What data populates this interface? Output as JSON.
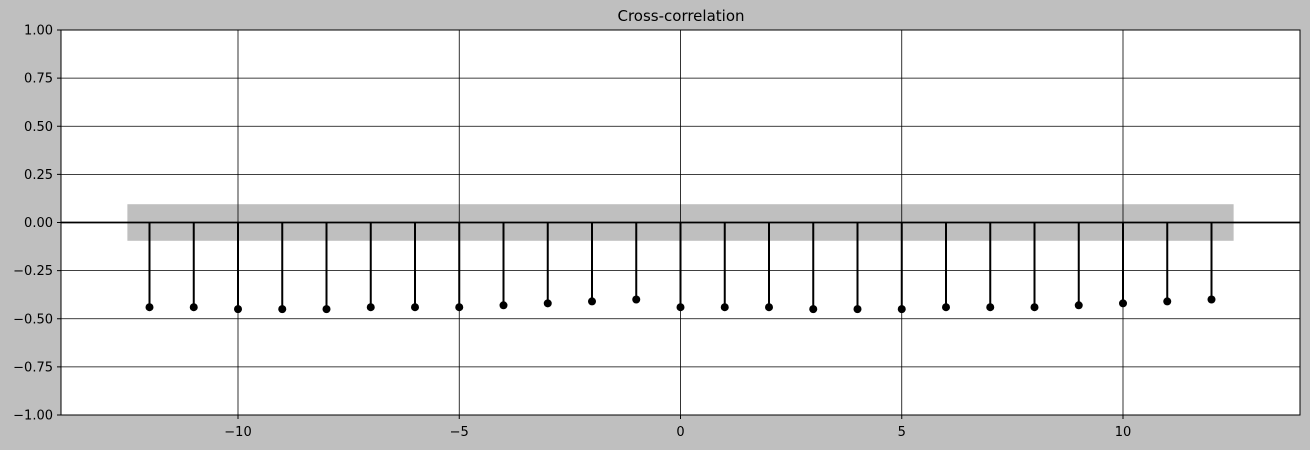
{
  "chart_data": {
    "type": "stem",
    "title": "Cross-correlation",
    "xlabel": "",
    "ylabel": "",
    "xlim": [
      -14,
      14
    ],
    "ylim": [
      -1.0,
      1.0
    ],
    "x_ticks": [
      -10,
      -5,
      0,
      5,
      10
    ],
    "x_tick_labels": [
      "−10",
      "−5",
      "0",
      "5",
      "10"
    ],
    "y_ticks": [
      1.0,
      0.75,
      0.5,
      0.25,
      0.0,
      -0.25,
      -0.5,
      -0.75,
      -1.0
    ],
    "y_tick_labels": [
      "1.00",
      "0.75",
      "0.50",
      "0.25",
      "0.00",
      "−0.25",
      "−0.50",
      "−0.75",
      "−1.00"
    ],
    "grid": true,
    "confidence_band": {
      "x_range": [
        -12.5,
        12.5
      ],
      "y_range": [
        -0.095,
        0.095
      ],
      "color": "#bfbfbf"
    },
    "lags": [
      -12,
      -11,
      -10,
      -9,
      -8,
      -7,
      -6,
      -5,
      -4,
      -3,
      -2,
      -1,
      0,
      1,
      2,
      3,
      4,
      5,
      6,
      7,
      8,
      9,
      10,
      11,
      12
    ],
    "values": [
      -0.44,
      -0.44,
      -0.45,
      -0.45,
      -0.45,
      -0.44,
      -0.44,
      -0.44,
      -0.43,
      -0.42,
      -0.41,
      -0.4,
      -0.44,
      -0.44,
      -0.44,
      -0.45,
      -0.45,
      -0.45,
      -0.44,
      -0.44,
      -0.44,
      -0.43,
      -0.42,
      -0.41,
      -0.4
    ],
    "colors": {
      "figure_background": "#bfbfbf",
      "axes_background": "#ffffff",
      "stem": "#000000",
      "marker": "#000000",
      "grid": "#000000"
    }
  }
}
